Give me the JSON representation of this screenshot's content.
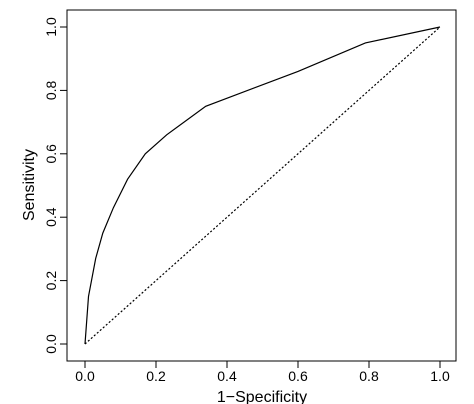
{
  "chart_data": {
    "type": "line",
    "title": "",
    "xlabel": "1−Specificity",
    "ylabel": "Sensitivity",
    "xlim": [
      0,
      1
    ],
    "ylim": [
      0,
      1
    ],
    "x_ticks": [
      "0.0",
      "0.2",
      "0.4",
      "0.6",
      "0.8",
      "1.0"
    ],
    "y_ticks": [
      "0.0",
      "0.2",
      "0.4",
      "0.6",
      "0.8",
      "1.0"
    ],
    "grid": false,
    "series": [
      {
        "style": "solid",
        "x": [
          0.0,
          0.01,
          0.03,
          0.05,
          0.08,
          0.12,
          0.17,
          0.23,
          0.34,
          0.6,
          0.79,
          1.0
        ],
        "y": [
          0.0,
          0.15,
          0.27,
          0.35,
          0.43,
          0.52,
          0.6,
          0.66,
          0.75,
          0.86,
          0.95,
          1.0
        ]
      },
      {
        "style": "dotted",
        "x": [
          0.0,
          1.0
        ],
        "y": [
          0.0,
          1.0
        ]
      }
    ]
  }
}
